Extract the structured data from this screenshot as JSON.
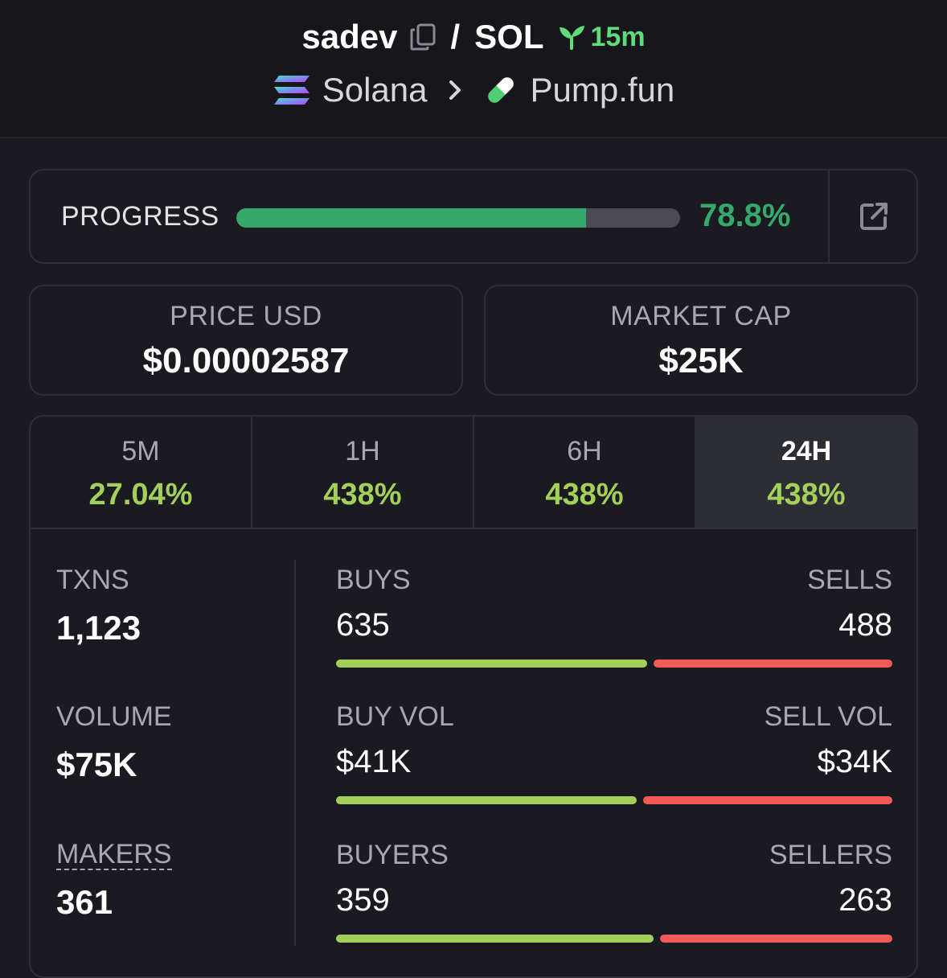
{
  "header": {
    "token_name": "sadev",
    "separator": "/",
    "quote": "SOL",
    "age": "15m",
    "chain": "Solana",
    "dex": "Pump.fun"
  },
  "progress": {
    "label": "PROGRESS",
    "percent_text": "78.8%",
    "value": 78.8
  },
  "stats": {
    "price_label": "PRICE USD",
    "price_value": "$0.00002587",
    "mcap_label": "MARKET CAP",
    "mcap_value": "$25K"
  },
  "timeframes": [
    {
      "label": "5M",
      "change": "27.04%",
      "active": false
    },
    {
      "label": "1H",
      "change": "438%",
      "active": false
    },
    {
      "label": "6H",
      "change": "438%",
      "active": false
    },
    {
      "label": "24H",
      "change": "438%",
      "active": true
    }
  ],
  "metrics": {
    "txns_label": "TXNS",
    "txns_value": "1,123",
    "volume_label": "VOLUME",
    "volume_value": "$75K",
    "makers_label": "MAKERS",
    "makers_value": "361",
    "rows": [
      {
        "left_label": "BUYS",
        "right_label": "SELLS",
        "left_value": "635",
        "right_value": "488",
        "buy_count": 635,
        "sell_count": 488
      },
      {
        "left_label": "BUY VOL",
        "right_label": "SELL VOL",
        "left_value": "$41K",
        "right_value": "$34K",
        "buy_count": 41,
        "sell_count": 34
      },
      {
        "left_label": "BUYERS",
        "right_label": "SELLERS",
        "left_value": "359",
        "right_value": "263",
        "buy_count": 359,
        "sell_count": 263
      }
    ]
  },
  "colors": {
    "accent_green": "#35a96a",
    "buy_green": "#a3d05a",
    "sell_red": "#f25a5a"
  }
}
